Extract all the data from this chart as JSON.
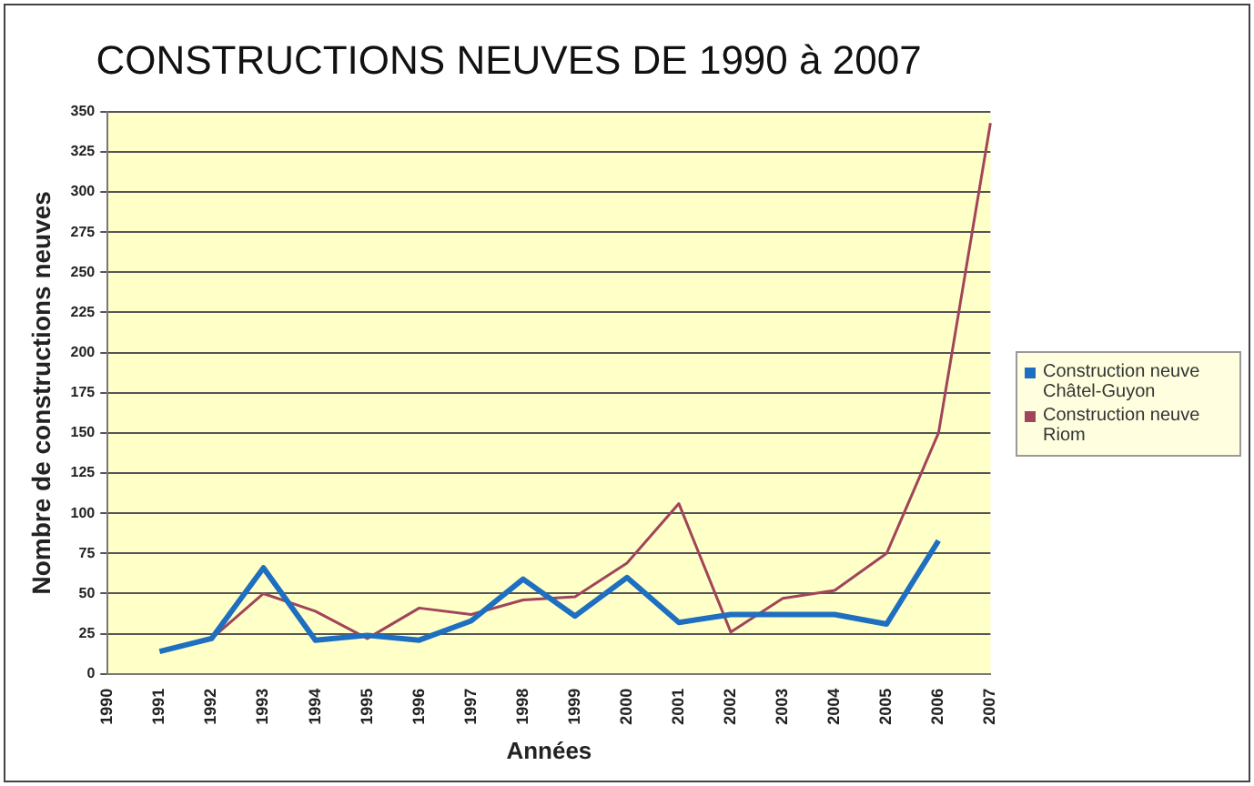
{
  "chart_data": {
    "type": "line",
    "title": "CONSTRUCTIONS NEUVES DE 1990 à 2007",
    "xlabel": "Années",
    "ylabel": "Nombre de constructions neuves",
    "categories": [
      "1990",
      "1991",
      "1992",
      "1993",
      "1994",
      "1995",
      "1996",
      "1997",
      "1998",
      "1999",
      "2000",
      "2001",
      "2002",
      "2003",
      "2004",
      "2005",
      "2006",
      "2007"
    ],
    "series": [
      {
        "name": "Construction neuve Châtel-Guyon",
        "color": "#1f6fc0",
        "values": [
          null,
          14,
          22,
          66,
          21,
          24,
          21,
          33,
          59,
          36,
          60,
          32,
          37,
          37,
          37,
          31,
          83,
          null
        ]
      },
      {
        "name": " Construction neuve Riom",
        "color": "#a0455a",
        "values": [
          null,
          null,
          22,
          50,
          39,
          22,
          41,
          37,
          46,
          48,
          69,
          106,
          26,
          47,
          52,
          75,
          150,
          343
        ]
      }
    ],
    "ylim": [
      0,
      350
    ],
    "yticks": [
      0,
      25,
      50,
      75,
      100,
      125,
      150,
      175,
      200,
      225,
      250,
      275,
      300,
      325,
      350
    ],
    "grid": "y",
    "legend": "right",
    "marker": "none",
    "line_style": "solid"
  }
}
